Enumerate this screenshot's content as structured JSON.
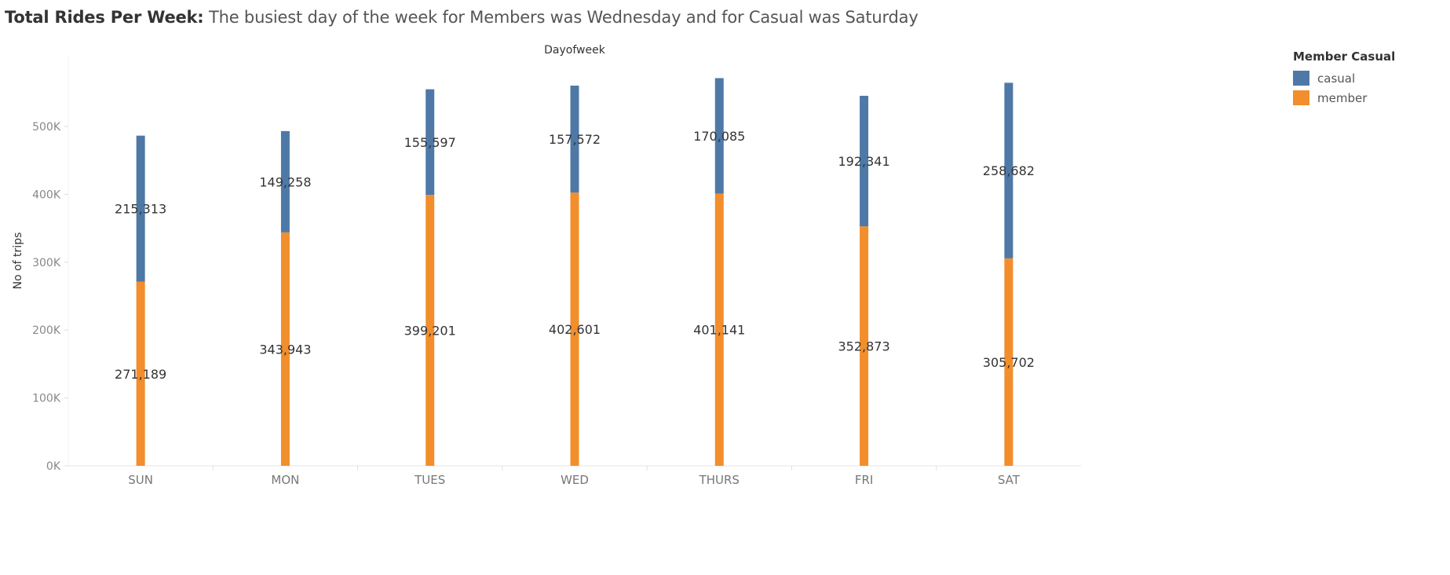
{
  "title": {
    "bold": "Total Rides Per Week:",
    "rest": "The busiest day of the week for Members was Wednesday and for Casual was Saturday"
  },
  "legend": {
    "title": "Member Casual",
    "items": [
      {
        "label": "casual",
        "color": "#4e79a7"
      },
      {
        "label": "member",
        "color": "#f28e2b"
      }
    ]
  },
  "chart_data": {
    "type": "bar",
    "stacked": true,
    "title": "Total Rides Per Week:",
    "subtitle": "The busiest day of the week for Members was Wednesday and for Casual was Saturday",
    "xlabel": "Dayofweek",
    "ylabel": "No of trips",
    "categories": [
      "SUN",
      "MON",
      "TUES",
      "WED",
      "THURS",
      "FRI",
      "SAT"
    ],
    "series": [
      {
        "name": "member",
        "color": "#f28e2b",
        "values": [
          271189,
          343943,
          399201,
          402601,
          401141,
          352873,
          305702
        ]
      },
      {
        "name": "casual",
        "color": "#4e79a7",
        "values": [
          215313,
          149258,
          155597,
          157572,
          170085,
          192341,
          258682
        ]
      }
    ],
    "data_labels": [
      [
        "271,189",
        "343,943",
        "399,201",
        "402,601",
        "401,141",
        "352,873",
        "305,702"
      ],
      [
        "215,313",
        "149,258",
        "155,597",
        "157,572",
        "170,085",
        "192,341",
        "258,682"
      ]
    ],
    "yticks": [
      0,
      100000,
      200000,
      300000,
      400000,
      500000
    ],
    "ytick_labels": [
      "0K",
      "100K",
      "200K",
      "300K",
      "400K",
      "500K"
    ],
    "ylim": [
      0,
      600000
    ],
    "grid": false,
    "legend_position": "top-right"
  }
}
